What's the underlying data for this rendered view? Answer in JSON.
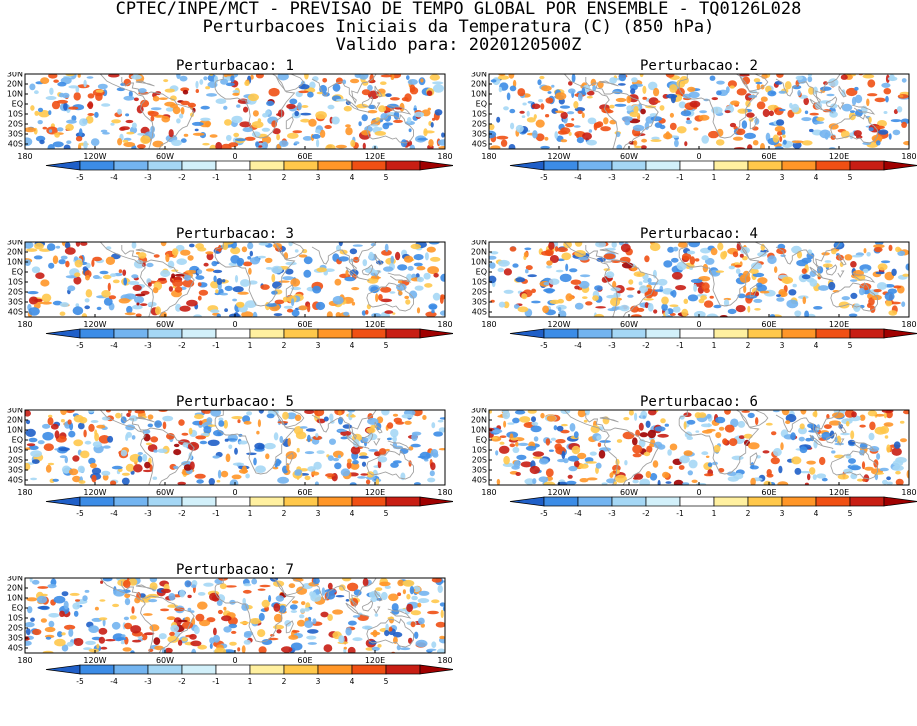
{
  "header": {
    "line1": "CPTEC/INPE/MCT - PREVISAO DE TEMPO GLOBAL POR ENSEMBLE - TQ0126L028",
    "line2": "Perturbacoes Iniciais da Temperatura (C) (850 hPa)",
    "line3": "Valido para: 2020120500Z"
  },
  "chart_data": {
    "type": "heatmap",
    "variable": "Perturbacoes Iniciais da Temperatura (C) (850 hPa)",
    "x_ticks": [
      "180",
      "120W",
      "60W",
      "0",
      "60E",
      "120E",
      "180"
    ],
    "y_ticks": [
      "30N",
      "20N",
      "10N",
      "EQ",
      "10S",
      "20S",
      "30S",
      "40S"
    ],
    "xlim": [
      -180,
      180
    ],
    "ylim": [
      -45,
      30
    ],
    "colorbar": {
      "ticks": [
        "-5",
        "-4",
        "-3",
        "-2",
        "-1",
        "1",
        "2",
        "3",
        "4",
        "5"
      ],
      "colors": [
        "#1f5fc8",
        "#3c8ce6",
        "#73b4f0",
        "#a5d7f5",
        "#d2f0fa",
        "#ffffff",
        "#fff0a0",
        "#ffc84b",
        "#ff9628",
        "#f05014",
        "#c81e14",
        "#a00000"
      ]
    },
    "panels": [
      {
        "title": "Perturbacao: 1"
      },
      {
        "title": "Perturbacao: 2"
      },
      {
        "title": "Perturbacao: 3"
      },
      {
        "title": "Perturbacao: 4"
      },
      {
        "title": "Perturbacao: 5"
      },
      {
        "title": "Perturbacao: 6"
      },
      {
        "title": "Perturbacao: 7"
      }
    ]
  }
}
